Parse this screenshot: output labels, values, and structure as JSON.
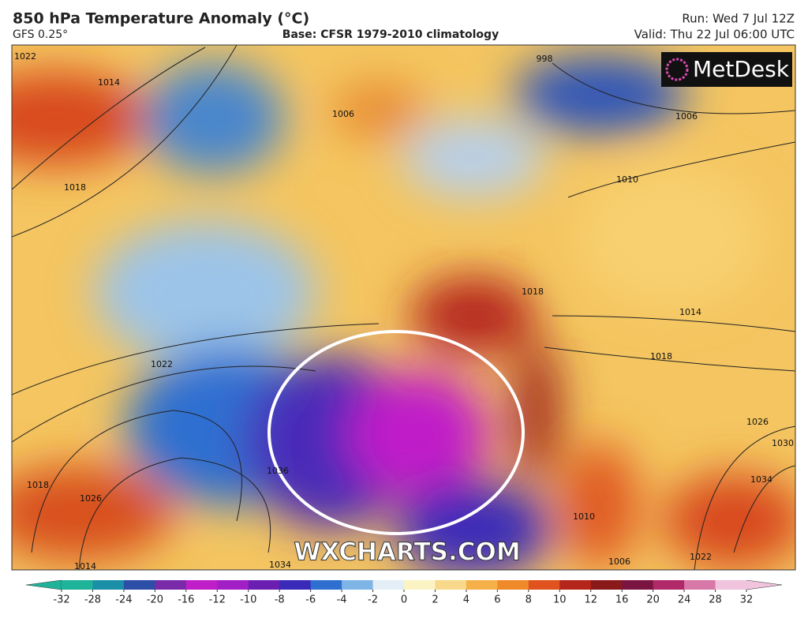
{
  "header": {
    "title": "850 hPa Temperature Anomaly (°C)",
    "model": "GFS 0.25°",
    "base": "Base: CFSR 1979-2010 climatology",
    "run": "Run: Wed 7 Jul 12Z",
    "valid": "Valid: Thu 22 Jul 06:00 UTC"
  },
  "logo": "MetDesk",
  "watermark": "WXCHARTS.COM",
  "isobar_labels": [
    "1022",
    "1018",
    "1014",
    "1006",
    "998",
    "1006",
    "1010",
    "1018",
    "1014",
    "1018",
    "1026",
    "1030",
    "1034",
    "1022",
    "1026",
    "1018",
    "1014",
    "1034",
    "1036",
    "1010",
    "1006",
    "1022"
  ],
  "colorbar": {
    "ticks": [
      -32,
      -28,
      -24,
      -20,
      -16,
      -12,
      -10,
      -8,
      -6,
      -4,
      -2,
      0,
      2,
      4,
      6,
      8,
      10,
      12,
      16,
      20,
      24,
      28,
      32
    ],
    "colors": [
      "#1fb39a",
      "#1c8fa8",
      "#2c4ea6",
      "#7a2aa8",
      "#c01ec8",
      "#a21fc6",
      "#6a1fb0",
      "#3a2ab8",
      "#2f6fd0",
      "#7fb4e6",
      "#e4eef6",
      "#fbf3c4",
      "#f8d88a",
      "#f5b04a",
      "#ef8a2a",
      "#e0521e",
      "#b5261a",
      "#8a1a1a",
      "#7a1440",
      "#b02a6a",
      "#d878a8",
      "#f0c4dc"
    ]
  }
}
